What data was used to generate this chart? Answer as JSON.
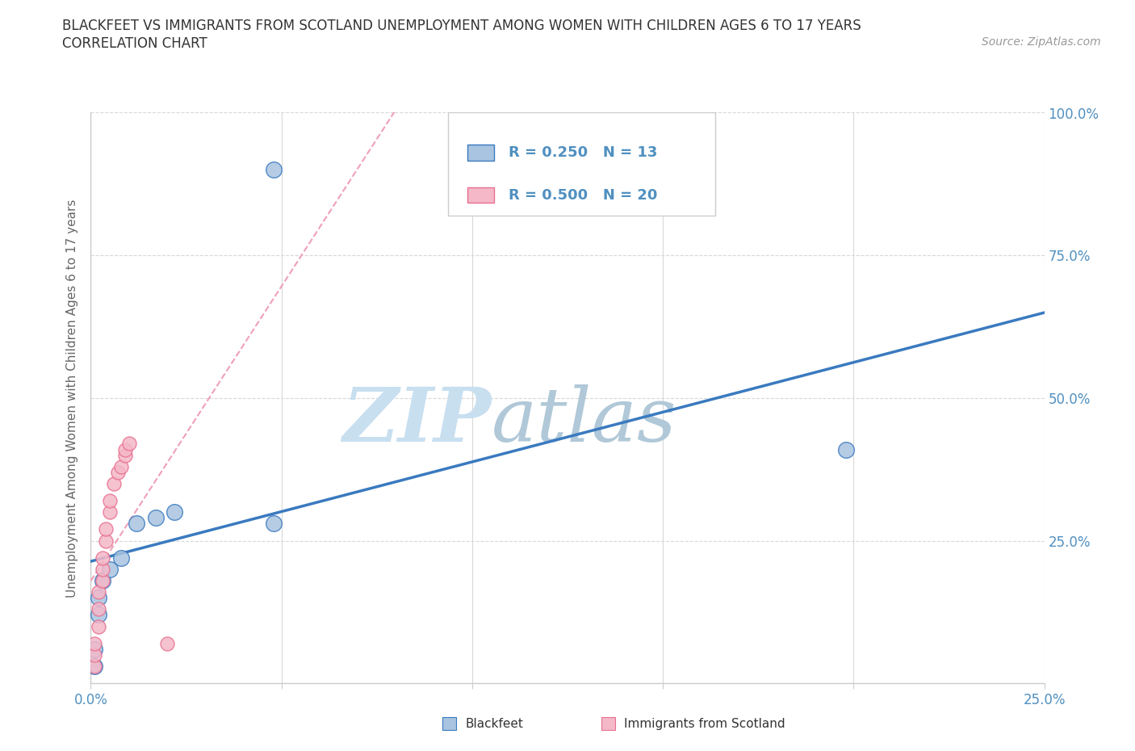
{
  "title_line1": "BLACKFEET VS IMMIGRANTS FROM SCOTLAND UNEMPLOYMENT AMONG WOMEN WITH CHILDREN AGES 6 TO 17 YEARS",
  "title_line2": "CORRELATION CHART",
  "source_text": "Source: ZipAtlas.com",
  "ylabel": "Unemployment Among Women with Children Ages 6 to 17 years",
  "xlim": [
    0.0,
    0.25
  ],
  "ylim": [
    0.0,
    1.0
  ],
  "x_ticks": [
    0.0,
    0.05,
    0.1,
    0.15,
    0.2,
    0.25
  ],
  "x_tick_labels": [
    "0.0%",
    "",
    "",
    "",
    "",
    "25.0%"
  ],
  "y_ticks": [
    0.0,
    0.25,
    0.5,
    0.75,
    1.0
  ],
  "y_tick_labels": [
    "",
    "25.0%",
    "50.0%",
    "75.0%",
    "100.0%"
  ],
  "blackfeet_x": [
    0.001,
    0.001,
    0.002,
    0.002,
    0.003,
    0.005,
    0.008,
    0.012,
    0.017,
    0.022,
    0.048,
    0.048,
    0.198
  ],
  "blackfeet_y": [
    0.03,
    0.06,
    0.12,
    0.15,
    0.18,
    0.2,
    0.22,
    0.28,
    0.29,
    0.3,
    0.9,
    0.28,
    0.41
  ],
  "scotland_x": [
    0.001,
    0.001,
    0.001,
    0.002,
    0.002,
    0.002,
    0.003,
    0.003,
    0.003,
    0.004,
    0.004,
    0.005,
    0.005,
    0.006,
    0.007,
    0.008,
    0.009,
    0.009,
    0.01,
    0.02
  ],
  "scotland_y": [
    0.03,
    0.05,
    0.07,
    0.1,
    0.13,
    0.16,
    0.18,
    0.2,
    0.22,
    0.25,
    0.27,
    0.3,
    0.32,
    0.35,
    0.37,
    0.38,
    0.4,
    0.41,
    0.42,
    0.07
  ],
  "blackfeet_color": "#a8c4e0",
  "scotland_color": "#f4b8c8",
  "blackfeet_trend_color": "#3a7abf",
  "scotland_trend_color": "#e87090",
  "scotland_trend_dash_color": "#f0a0b8",
  "legend_R_blackfeet": "R = 0.250",
  "legend_N_blackfeet": "N = 13",
  "legend_R_scotland": "R = 0.500",
  "legend_N_scotland": "N = 20",
  "watermark_zip": "ZIP",
  "watermark_atlas": "atlas",
  "watermark_color": "#c8dff0",
  "watermark_atlas_color": "#b0c8d8",
  "grid_color": "#d8d8d8",
  "tick_color": "#5090c0",
  "background_color": "#ffffff"
}
